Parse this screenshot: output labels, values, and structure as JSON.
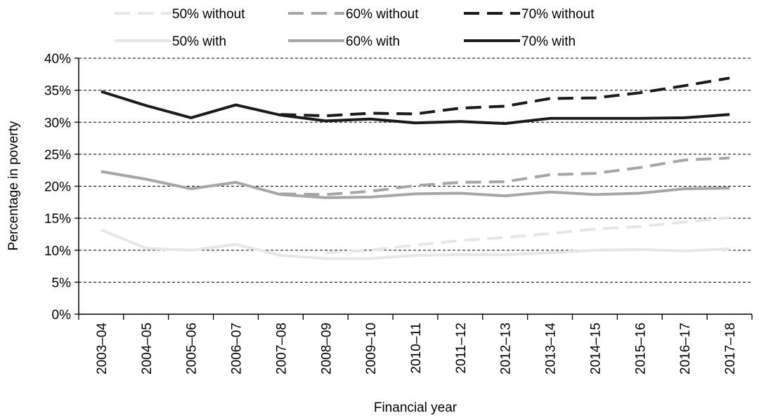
{
  "chart_data": {
    "type": "line",
    "xlabel": "Financial year",
    "ylabel": "Percentage in poverty",
    "ylim": [
      0,
      40
    ],
    "yticks": [
      "0%",
      "5%",
      "10%",
      "15%",
      "20%",
      "25%",
      "30%",
      "35%",
      "40%"
    ],
    "grid": "horizontal dashed",
    "legend_position": "top",
    "categories": [
      "2003–04",
      "2004–05",
      "2005–06",
      "2006–07",
      "2007–08",
      "2008–09",
      "2009–10",
      "2010–11",
      "2011–12",
      "2012–13",
      "2013–14",
      "2014–15",
      "2015–16",
      "2016–17",
      "2017–18"
    ],
    "series": [
      {
        "name": "50% without",
        "color": "#e6e6e6",
        "dash": true,
        "values": [
          null,
          null,
          null,
          null,
          null,
          9.6,
          10.0,
          10.8,
          11.5,
          12.0,
          12.6,
          13.3,
          13.7,
          14.4,
          15.1
        ]
      },
      {
        "name": "60% without",
        "color": "#a6a6a6",
        "dash": true,
        "values": [
          null,
          null,
          null,
          null,
          18.8,
          18.7,
          19.2,
          20.1,
          20.6,
          20.7,
          21.8,
          22.0,
          22.9,
          24.1,
          24.4
        ]
      },
      {
        "name": "70% without",
        "color": "#1a1a1a",
        "dash": true,
        "values": [
          null,
          null,
          null,
          null,
          31.2,
          31.0,
          31.4,
          31.3,
          32.2,
          32.5,
          33.7,
          33.8,
          34.6,
          35.7,
          36.9
        ]
      },
      {
        "name": "50% with",
        "color": "#e6e6e6",
        "dash": false,
        "values": [
          13.2,
          10.3,
          10.0,
          10.9,
          9.2,
          8.7,
          8.7,
          9.2,
          9.3,
          9.3,
          9.6,
          10.0,
          10.1,
          9.9,
          10.2
        ]
      },
      {
        "name": "60% with",
        "color": "#a6a6a6",
        "dash": false,
        "values": [
          22.3,
          21.1,
          19.6,
          20.6,
          18.7,
          18.2,
          18.3,
          18.8,
          18.9,
          18.5,
          19.1,
          18.7,
          18.9,
          19.6,
          19.7
        ]
      },
      {
        "name": "70% with",
        "color": "#1a1a1a",
        "dash": false,
        "values": [
          34.8,
          32.6,
          30.7,
          32.7,
          31.1,
          30.2,
          30.5,
          29.9,
          30.1,
          29.8,
          30.6,
          30.6,
          30.6,
          30.7,
          31.2
        ]
      }
    ]
  }
}
